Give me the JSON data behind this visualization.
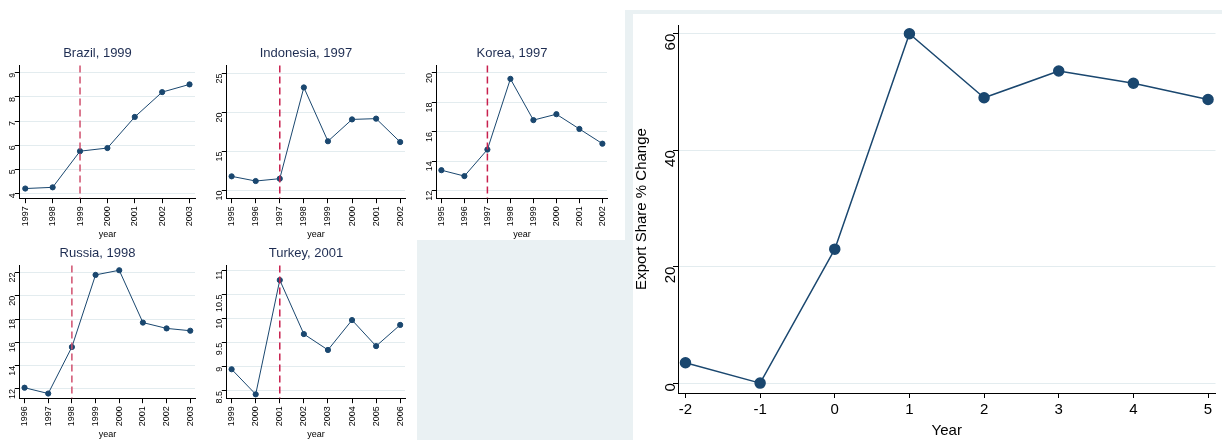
{
  "chart_data": [
    {
      "type": "line",
      "title": "Brazil, 1999",
      "xlabel": "year",
      "x": [
        1997,
        1998,
        1999,
        2000,
        2001,
        2002,
        2003
      ],
      "series": [
        {
          "color": "#1a476f",
          "values": [
            4.2,
            4.25,
            5.75,
            5.88,
            7.17,
            8.2,
            8.52
          ]
        }
      ],
      "xlim": [
        1996.8,
        2003.2
      ],
      "xticks": [
        1997,
        1998,
        1999,
        2000,
        2001,
        2002,
        2003
      ],
      "ylim": [
        3.8,
        9.3
      ],
      "yticks": [
        4,
        5,
        6,
        7,
        8,
        9
      ],
      "ref_lines": [
        {
          "axis": "x",
          "value": 1999,
          "color": "#d0506e",
          "line_style": "dashed"
        }
      ],
      "grid": "y",
      "marker": "circle",
      "legend": false
    },
    {
      "type": "line",
      "title": "Indonesia, 1997",
      "xlabel": "year",
      "x": [
        1995,
        1996,
        1997,
        1998,
        1999,
        2000,
        2001,
        2002
      ],
      "series": [
        {
          "color": "#1a476f",
          "values": [
            11.8,
            11.2,
            11.5,
            23.2,
            16.3,
            19.1,
            19.2,
            16.2
          ]
        }
      ],
      "xlim": [
        1994.8,
        2002.2
      ],
      "xticks": [
        1995,
        1996,
        1997,
        1998,
        1999,
        2000,
        2001,
        2002
      ],
      "ylim": [
        9,
        26
      ],
      "yticks": [
        10,
        15,
        20,
        25
      ],
      "ref_lines": [
        {
          "axis": "x",
          "value": 1997,
          "color": "#c8204e",
          "line_style": "dashed"
        }
      ],
      "grid": "y",
      "marker": "circle",
      "legend": false
    },
    {
      "type": "line",
      "title": "Korea, 1997",
      "xlabel": "year",
      "x": [
        1995,
        1996,
        1997,
        1998,
        1999,
        2000,
        2001,
        2002
      ],
      "series": [
        {
          "color": "#1a476f",
          "values": [
            13.4,
            13.0,
            14.8,
            19.6,
            16.8,
            17.2,
            16.2,
            15.2
          ]
        }
      ],
      "xlim": [
        1994.8,
        2002.2
      ],
      "xticks": [
        1995,
        1996,
        1997,
        1998,
        1999,
        2000,
        2001,
        2002
      ],
      "ylim": [
        11.5,
        20.5
      ],
      "yticks": [
        12,
        14,
        16,
        18,
        20
      ],
      "ref_lines": [
        {
          "axis": "x",
          "value": 1997,
          "color": "#c8204e",
          "line_style": "dashed"
        }
      ],
      "grid": "y",
      "marker": "circle",
      "legend": false
    },
    {
      "type": "line",
      "title": "Russia, 1998",
      "xlabel": "year",
      "x": [
        1996,
        1997,
        1998,
        1999,
        2000,
        2001,
        2002,
        2003
      ],
      "series": [
        {
          "color": "#1a476f",
          "values": [
            12.1,
            11.6,
            15.6,
            21.8,
            22.2,
            17.7,
            17.2,
            17.0
          ]
        }
      ],
      "xlim": [
        1995.8,
        2003.2
      ],
      "xticks": [
        1996,
        1997,
        1998,
        1999,
        2000,
        2001,
        2002,
        2003
      ],
      "ylim": [
        11.2,
        22.6
      ],
      "yticks": [
        12,
        14,
        16,
        18,
        20,
        22
      ],
      "ref_lines": [
        {
          "axis": "x",
          "value": 1998,
          "color": "#d0506e",
          "line_style": "dashed"
        }
      ],
      "grid": "y",
      "marker": "circle",
      "legend": false
    },
    {
      "type": "line",
      "title": "Turkey, 2001",
      "xlabel": "year",
      "x": [
        1999,
        2000,
        2001,
        2002,
        2003,
        2004,
        2005,
        2006
      ],
      "series": [
        {
          "color": "#1a476f",
          "values": [
            8.95,
            8.43,
            10.8,
            9.68,
            9.35,
            9.97,
            9.43,
            9.87
          ]
        }
      ],
      "xlim": [
        1998.8,
        2006.2
      ],
      "xticks": [
        1999,
        2000,
        2001,
        2002,
        2003,
        2004,
        2005,
        2006
      ],
      "ylim": [
        8.35,
        11.1
      ],
      "yticks": [
        8.5,
        9,
        9.5,
        10,
        10.5,
        11
      ],
      "ref_lines": [
        {
          "axis": "x",
          "value": 2001,
          "color": "#c8204e",
          "line_style": "dashed"
        }
      ],
      "grid": "y",
      "marker": "circle",
      "legend": false
    },
    {
      "type": "line",
      "xlabel": "Year",
      "ylabel": "Export Share % Change",
      "x": [
        -2,
        -1,
        0,
        1,
        2,
        3,
        4,
        5
      ],
      "series": [
        {
          "color": "#1a476f",
          "values": [
            3.5,
            0,
            23,
            60,
            49,
            53.6,
            51.5,
            48.7
          ]
        }
      ],
      "xlim": [
        -2.1,
        5.1
      ],
      "xticks": [
        -2,
        -1,
        0,
        1,
        2,
        3,
        4,
        5
      ],
      "ylim": [
        -1.7,
        61.5
      ],
      "yticks": [
        0,
        20,
        40,
        60
      ],
      "grid": "y",
      "marker": "circle",
      "legend": false
    }
  ]
}
